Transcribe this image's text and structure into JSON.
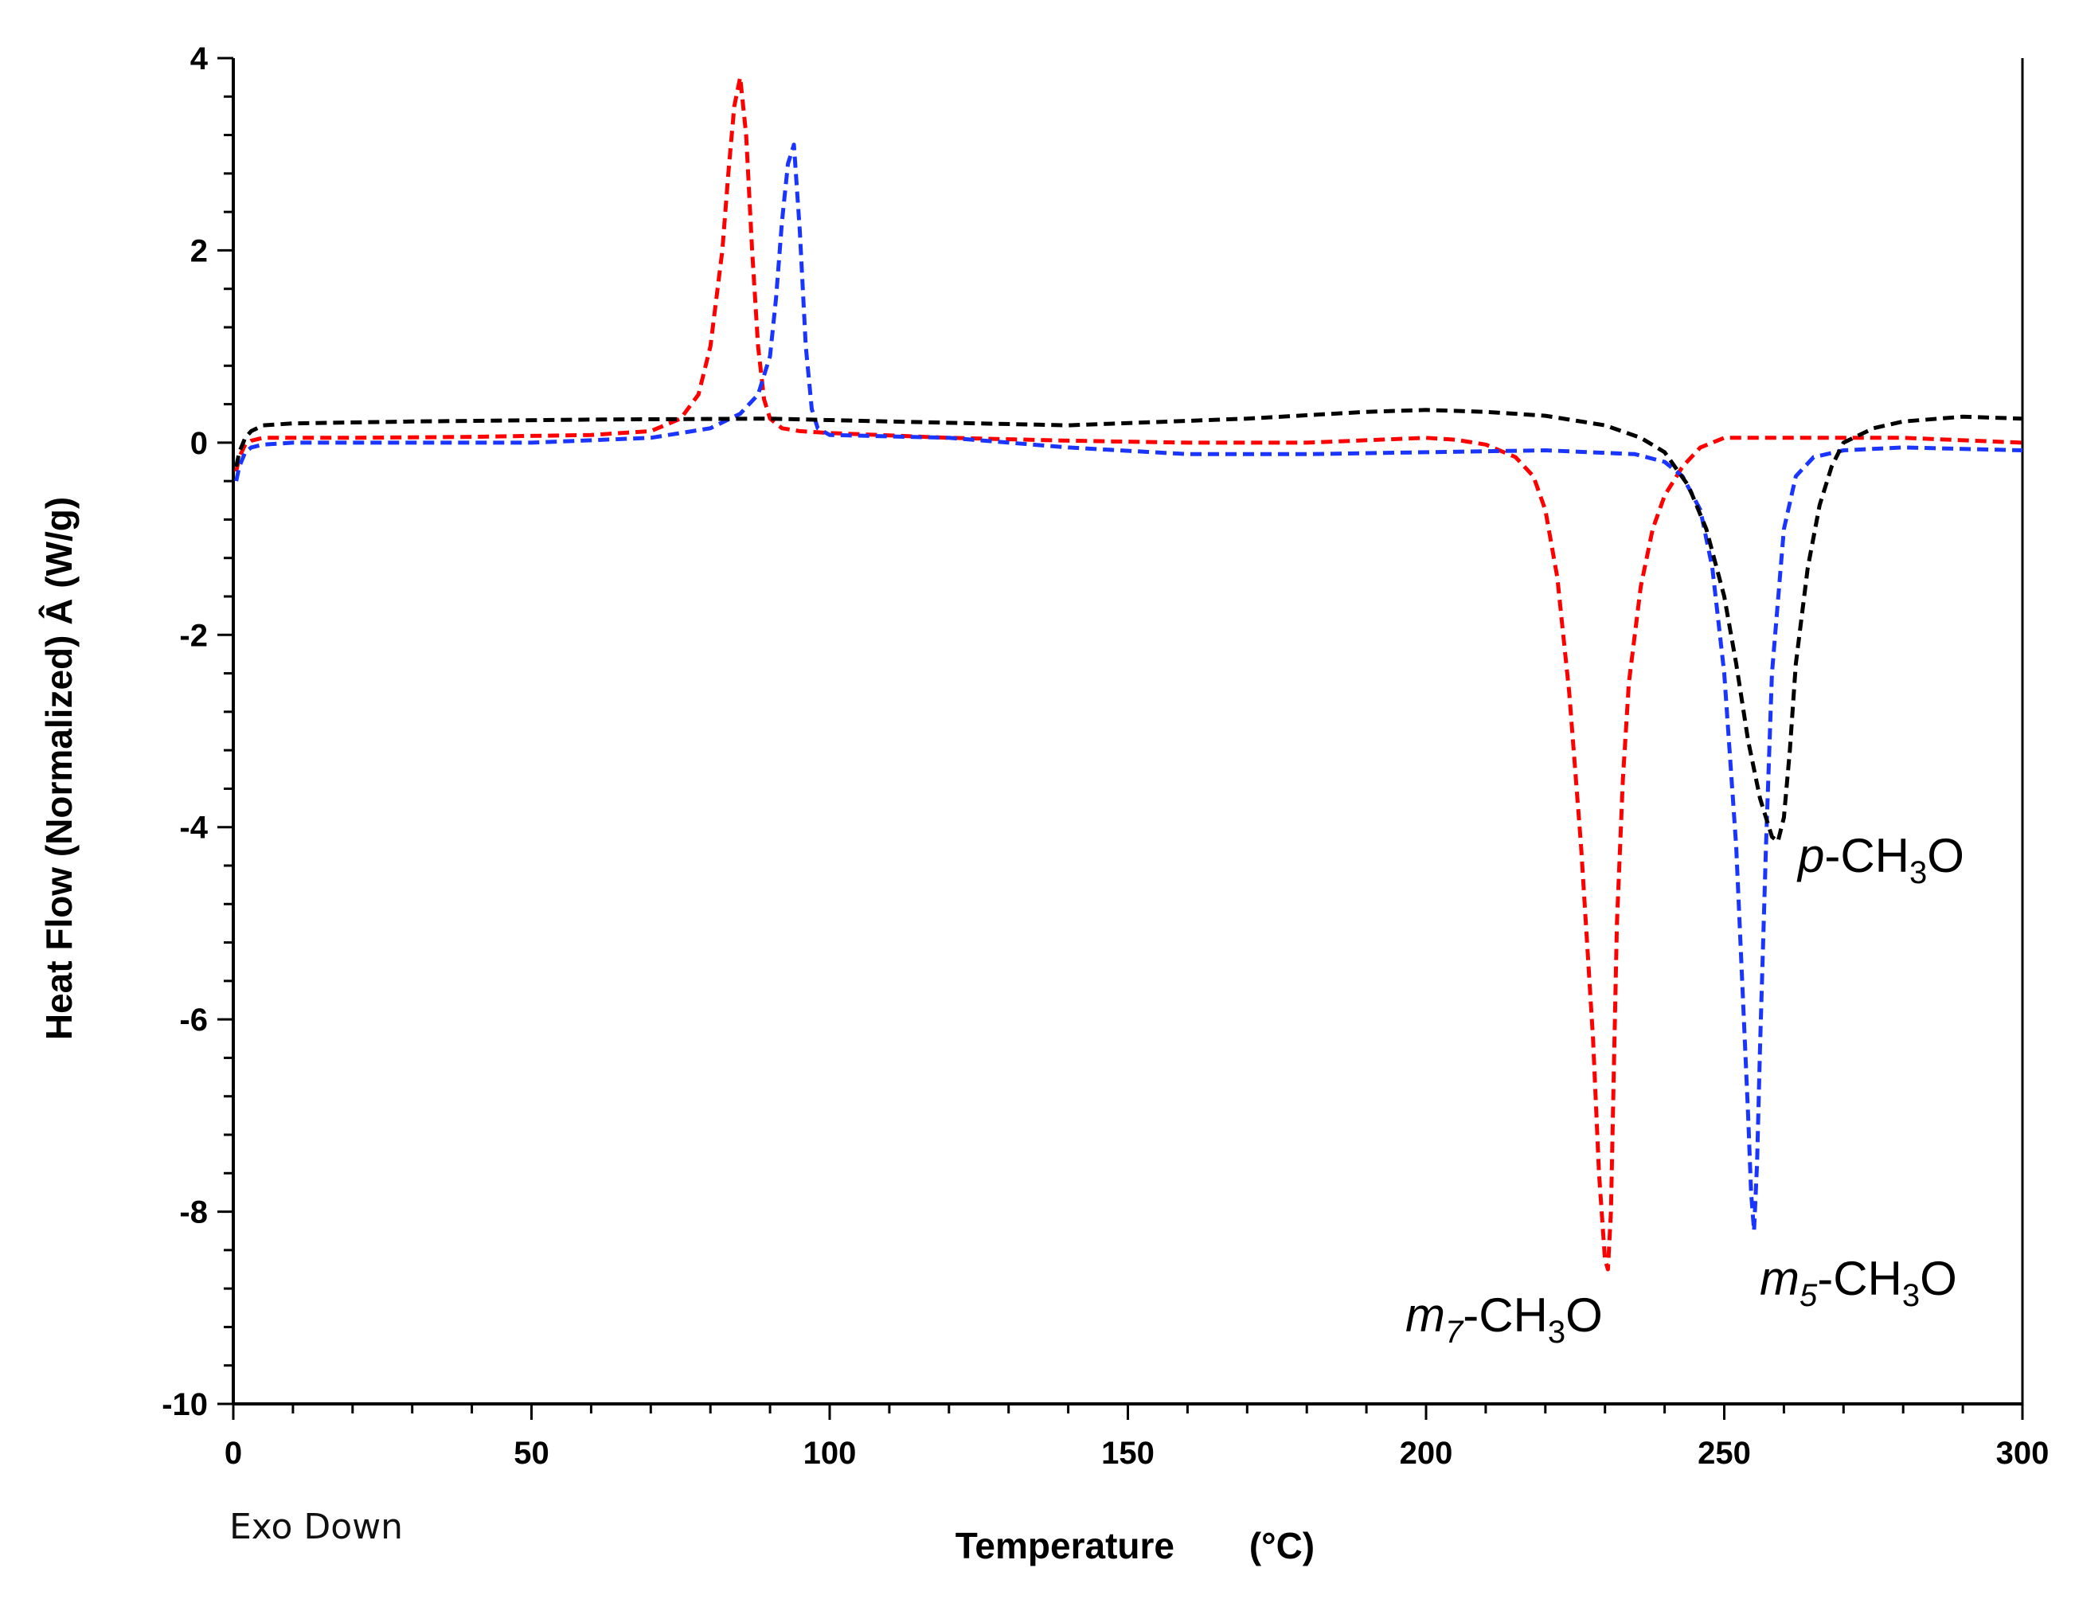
{
  "chart_data": {
    "type": "line",
    "title": "",
    "xlabel": "Temperature",
    "xlabel_unit": "(°C)",
    "ylabel": "Heat Flow (Normalized) Â (W/g)",
    "note": "Exo Down",
    "xlim": [
      0,
      300
    ],
    "ylim": [
      -10,
      4
    ],
    "xticks": [
      0,
      50,
      100,
      150,
      200,
      250,
      300
    ],
    "yticks": [
      4,
      2,
      0,
      -2,
      -4,
      -6,
      -8,
      -10
    ],
    "grid": false,
    "series": [
      {
        "name": "m7-CH3O",
        "label_italic": "m",
        "label_sub_italic": "7",
        "label_rest": "-CH",
        "label_sub": "3",
        "label_end": "O",
        "color": "#ff0000",
        "x": [
          0.5,
          1,
          2,
          3,
          5,
          10,
          20,
          40,
          60,
          70,
          75,
          78,
          80,
          82,
          83,
          84,
          85,
          86,
          87,
          88,
          89,
          90,
          92,
          95,
          100,
          120,
          140,
          160,
          180,
          200,
          205,
          210,
          215,
          218,
          220,
          222,
          224,
          226,
          228,
          229,
          230,
          230.5,
          231,
          231.5,
          232,
          233,
          234,
          236,
          238,
          240,
          243,
          246,
          250,
          260,
          280,
          300
        ],
        "y": [
          -0.3,
          -0.15,
          -0.02,
          0.02,
          0.05,
          0.05,
          0.05,
          0.06,
          0.08,
          0.12,
          0.25,
          0.5,
          1.0,
          2.0,
          2.8,
          3.5,
          3.8,
          3.2,
          2.0,
          1.0,
          0.45,
          0.25,
          0.15,
          0.12,
          0.1,
          0.05,
          0.02,
          0.0,
          0.0,
          0.05,
          0.03,
          -0.02,
          -0.15,
          -0.35,
          -0.7,
          -1.4,
          -2.6,
          -4.2,
          -6.2,
          -7.6,
          -8.5,
          -8.6,
          -8.0,
          -6.5,
          -5.0,
          -3.5,
          -2.5,
          -1.5,
          -0.9,
          -0.55,
          -0.25,
          -0.05,
          0.05,
          0.05,
          0.05,
          0.0
        ]
      },
      {
        "name": "m5-CH3O",
        "label_italic": "m",
        "label_sub_italic": "5",
        "label_rest": "-CH",
        "label_sub": "3",
        "label_end": "O",
        "color": "#1a35ff",
        "x": [
          0.5,
          1,
          2,
          3,
          5,
          10,
          30,
          50,
          70,
          80,
          85,
          88,
          90,
          91,
          92,
          93,
          94,
          95,
          96,
          97,
          98,
          100,
          120,
          140,
          160,
          180,
          200,
          220,
          235,
          240,
          243,
          246,
          248,
          250,
          252,
          253,
          254,
          254.5,
          255,
          255.5,
          256,
          257,
          258,
          260,
          262,
          265,
          270,
          280,
          300
        ],
        "y": [
          -0.4,
          -0.25,
          -0.1,
          -0.05,
          -0.02,
          0.0,
          0.0,
          0.0,
          0.05,
          0.15,
          0.3,
          0.5,
          0.9,
          1.5,
          2.3,
          2.9,
          3.1,
          2.2,
          1.0,
          0.35,
          0.15,
          0.08,
          0.05,
          -0.05,
          -0.12,
          -0.12,
          -0.1,
          -0.08,
          -0.12,
          -0.2,
          -0.35,
          -0.7,
          -1.3,
          -2.4,
          -4.2,
          -5.6,
          -7.0,
          -7.8,
          -8.2,
          -7.5,
          -6.3,
          -4.2,
          -2.4,
          -0.9,
          -0.35,
          -0.15,
          -0.08,
          -0.05,
          -0.08
        ]
      },
      {
        "name": "p-CH3O",
        "label_italic": "p",
        "label_sub_italic": "",
        "label_rest": "-CH",
        "label_sub": "3",
        "label_end": "O",
        "color": "#000000",
        "x": [
          0.5,
          1,
          2,
          3,
          5,
          10,
          30,
          60,
          90,
          110,
          140,
          170,
          190,
          200,
          210,
          220,
          230,
          236,
          240,
          244,
          247,
          250,
          252,
          254,
          256,
          258,
          259,
          260,
          261,
          262,
          264,
          266,
          268,
          270,
          275,
          280,
          290,
          300
        ],
        "y": [
          -0.25,
          -0.1,
          0.05,
          0.12,
          0.18,
          0.2,
          0.22,
          0.24,
          0.25,
          0.22,
          0.18,
          0.25,
          0.32,
          0.34,
          0.32,
          0.28,
          0.18,
          0.05,
          -0.1,
          -0.45,
          -0.9,
          -1.6,
          -2.3,
          -3.1,
          -3.7,
          -4.1,
          -4.15,
          -3.9,
          -3.2,
          -2.3,
          -1.3,
          -0.65,
          -0.25,
          0.0,
          0.15,
          0.22,
          0.27,
          0.25
        ]
      }
    ]
  }
}
